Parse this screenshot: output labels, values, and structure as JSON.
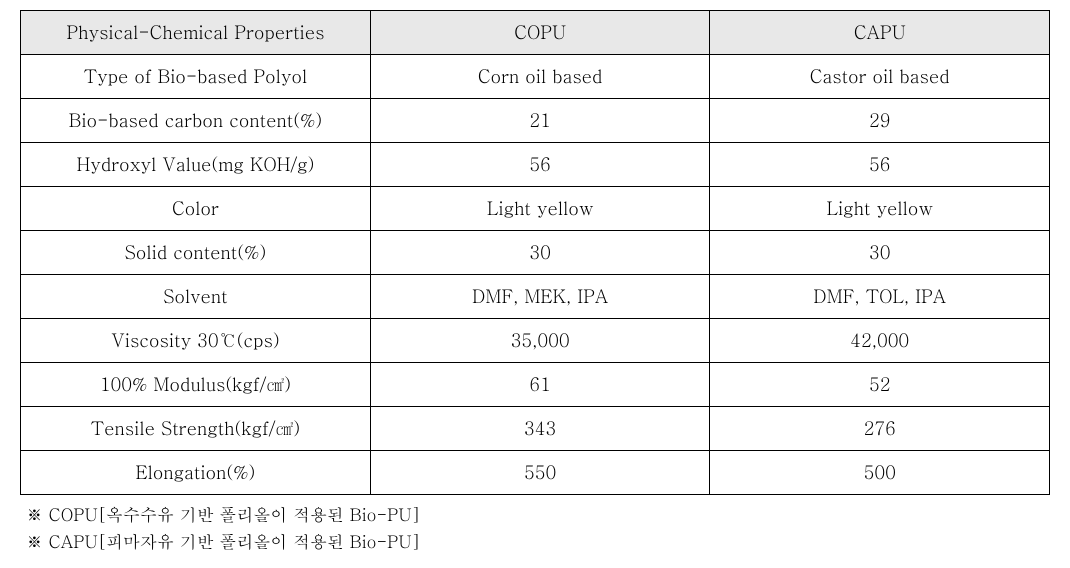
{
  "table": {
    "columns": [
      "Physical-Chemical Properties",
      "COPU",
      "CAPU"
    ],
    "rows": [
      [
        "Type of Bio-based Polyol",
        "Corn oil based",
        "Castor oil based"
      ],
      [
        "Bio-based carbon content(%)",
        "21",
        "29"
      ],
      [
        "Hydroxyl Value(mg KOH/g)",
        "56",
        "56"
      ],
      [
        "Color",
        "Light yellow",
        "Light yellow"
      ],
      [
        "Solid content(%)",
        "30",
        "30"
      ],
      [
        "Solvent",
        "DMF, MEK, IPA",
        "DMF, TOL, IPA"
      ],
      [
        "Viscosity 30℃(cps)",
        "35,000",
        "42,000"
      ],
      [
        "100% Modulus(kgf/㎠)",
        "61",
        "52"
      ],
      [
        "Tensile Strength(kgf/㎠)",
        "343",
        "276"
      ],
      [
        "Elongation(%)",
        "550",
        "500"
      ]
    ],
    "header_bg": "#e8e8e8",
    "border_color": "#000000",
    "font_size": 18,
    "col_widths": [
      "34%",
      "33%",
      "33%"
    ]
  },
  "footnotes": [
    "※ COPU[옥수수유 기반 폴리올이 적용된 Bio-PU]",
    "※ CAPU[피마자유 기반 폴리올이 적용된 Bio-PU]"
  ]
}
